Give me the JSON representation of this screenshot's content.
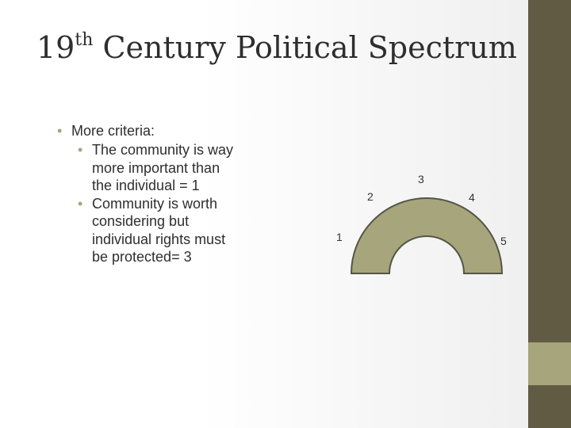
{
  "slide": {
    "title_main": "19",
    "title_superscript": "th",
    "title_rest": " Century Political Spectrum"
  },
  "bullets": {
    "heading": "More criteria:",
    "items": [
      "The community is way more important than the individual = 1",
      "Community is worth considering but individual rights must be protected= 3"
    ]
  },
  "spectrum": {
    "labels": [
      "1",
      "2",
      "3",
      "4",
      "5"
    ]
  },
  "colors": {
    "sidebar": "#625b44",
    "sidebar_accent": "#a6a57c",
    "arc_fill": "#a6a57c",
    "bullet": "#a6a57c"
  }
}
